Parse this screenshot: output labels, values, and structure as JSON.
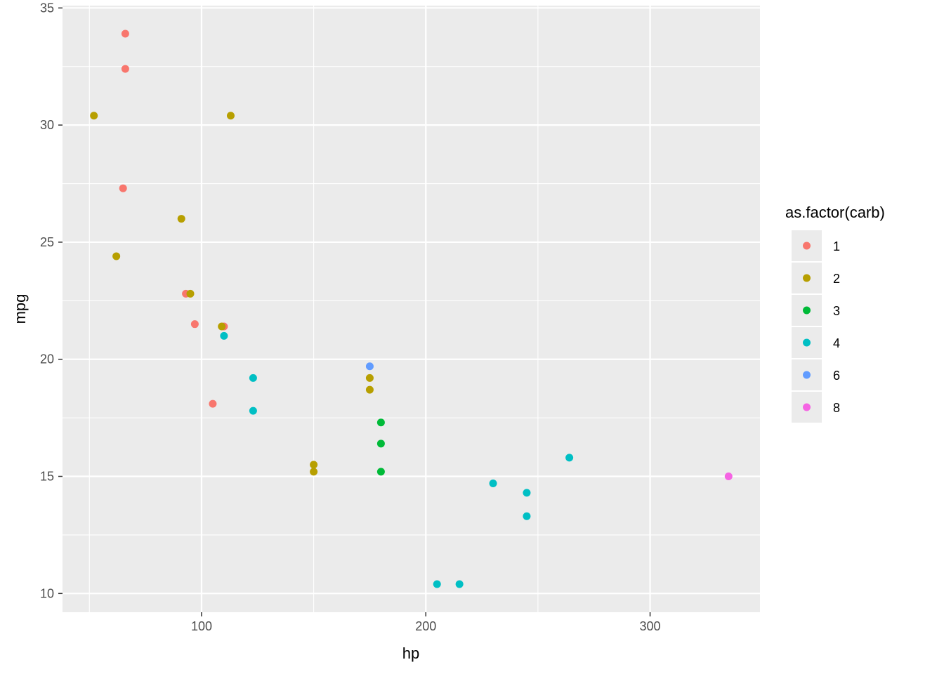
{
  "chart_data": {
    "type": "scatter",
    "title": "",
    "xlabel": "hp",
    "ylabel": "mpg",
    "xlim": [
      38,
      349
    ],
    "ylim": [
      9.2,
      35.1
    ],
    "x_ticks": [
      100,
      200,
      300
    ],
    "x_tick_labels": [
      "100",
      "200",
      "300"
    ],
    "y_ticks": [
      10,
      15,
      20,
      25,
      30,
      35
    ],
    "y_tick_labels": [
      "10",
      "15",
      "20",
      "25",
      "30",
      "35"
    ],
    "grid": true,
    "legend": {
      "title": "as.factor(carb)",
      "placement": "right"
    },
    "series": [
      {
        "name": "1",
        "color": "#F8766D",
        "points": [
          [
            66,
            33.9
          ],
          [
            66,
            32.4
          ],
          [
            65,
            27.3
          ],
          [
            93,
            22.8
          ],
          [
            110,
            21.4
          ],
          [
            97,
            21.5
          ],
          [
            105,
            18.1
          ]
        ]
      },
      {
        "name": "2",
        "color": "#B79F00",
        "points": [
          [
            52,
            30.4
          ],
          [
            113,
            30.4
          ],
          [
            62,
            24.4
          ],
          [
            91,
            26.0
          ],
          [
            95,
            22.8
          ],
          [
            109,
            21.4
          ],
          [
            175,
            19.2
          ],
          [
            175,
            18.7
          ],
          [
            150,
            15.5
          ],
          [
            150,
            15.2
          ]
        ]
      },
      {
        "name": "3",
        "color": "#00BA38",
        "points": [
          [
            180,
            17.3
          ],
          [
            180,
            16.4
          ],
          [
            180,
            15.2
          ]
        ]
      },
      {
        "name": "4",
        "color": "#00BFC4",
        "points": [
          [
            110,
            21.0
          ],
          [
            123,
            19.2
          ],
          [
            123,
            17.8
          ],
          [
            264,
            15.8
          ],
          [
            230,
            14.7
          ],
          [
            245,
            14.3
          ],
          [
            245,
            13.3
          ],
          [
            205,
            10.4
          ],
          [
            215,
            10.4
          ]
        ]
      },
      {
        "name": "6",
        "color": "#619CFF",
        "points": [
          [
            175,
            19.7
          ]
        ]
      },
      {
        "name": "8",
        "color": "#F564E3",
        "points": [
          [
            335,
            15.0
          ]
        ]
      }
    ]
  }
}
